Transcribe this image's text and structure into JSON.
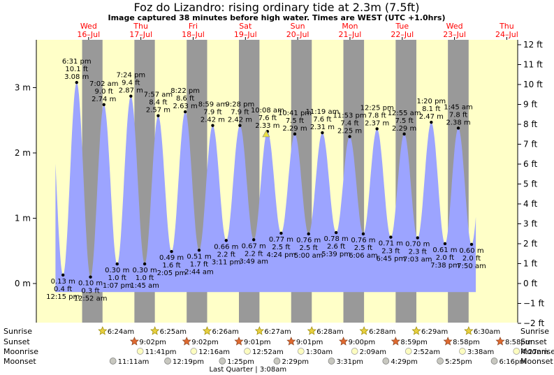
{
  "header": {
    "title": "Foz do Lizandro: rising  ordinary tide at 2.3m (7.5ft)",
    "subtitle": "Image captured 38 minutes before high water. Times are WEST (UTC +1.0hrs)"
  },
  "days": [
    {
      "name": "Wed",
      "date": "16–Jul",
      "t": 24
    },
    {
      "name": "Thu",
      "date": "17–Jul",
      "t": 48
    },
    {
      "name": "Fri",
      "date": "18–Jul",
      "t": 72
    },
    {
      "name": "Sat",
      "date": "19–Jul",
      "t": 96
    },
    {
      "name": "Sun",
      "date": "20–Jul",
      "t": 120
    },
    {
      "name": "Mon",
      "date": "21–Jul",
      "t": 144
    },
    {
      "name": "Tue",
      "date": "22–Jul",
      "t": 168
    },
    {
      "name": "Wed",
      "date": "23–Jul",
      "t": 192
    },
    {
      "name": "Thu",
      "date": "24–Jul",
      "t": 216
    }
  ],
  "axes": {
    "left_ticks": [
      {
        "v": 0,
        "label": "0 m"
      },
      {
        "v": 1,
        "label": "1 m"
      },
      {
        "v": 2,
        "label": "2 m"
      },
      {
        "v": 3,
        "label": "3 m"
      }
    ],
    "right_ticks": [
      "−2 ft",
      "−1 ft",
      "0 ft",
      "1 ft",
      "2 ft",
      "3 ft",
      "4 ft",
      "5 ft",
      "6 ft",
      "7 ft",
      "8 ft",
      "9 ft",
      "10 ft",
      "11 ft",
      "12 ft"
    ],
    "ylim_m": [
      -0.3,
      3.7
    ],
    "ft_to_m": 0.3048
  },
  "chart_data": {
    "type": "area",
    "time_unit": "hours since 00:00 16-Jul (WEST)",
    "tides": [
      {
        "t": 12.25,
        "m": 0.13,
        "ft": "0.4 ft",
        "time": "12:15 pm",
        "type": "low"
      },
      {
        "t": 18.52,
        "m": 3.08,
        "ft": "10.1 ft",
        "time": "6:31 pm",
        "type": "high"
      },
      {
        "t": 24.87,
        "m": 0.1,
        "ft": "0.3 ft",
        "time": "12:52 am",
        "type": "low"
      },
      {
        "t": 31.03,
        "m": 2.74,
        "ft": "9.0 ft",
        "time": "7:02 am",
        "type": "high"
      },
      {
        "t": 37.12,
        "m": 0.3,
        "ft": "1.0 ft",
        "time": "1:07 pm",
        "type": "low"
      },
      {
        "t": 43.4,
        "m": 2.87,
        "ft": "9.4 ft",
        "time": "7:24 pm",
        "type": "high"
      },
      {
        "t": 49.75,
        "m": 0.3,
        "ft": "1.0 ft",
        "time": "1:45 am",
        "type": "low"
      },
      {
        "t": 55.95,
        "m": 2.57,
        "ft": "8.4 ft",
        "time": "7:57 am",
        "type": "high"
      },
      {
        "t": 62.08,
        "m": 0.49,
        "ft": "1.6 ft",
        "time": "2:05 pm",
        "type": "low"
      },
      {
        "t": 68.37,
        "m": 2.63,
        "ft": "8.6 ft",
        "time": "8:22 pm",
        "type": "high"
      },
      {
        "t": 74.73,
        "m": 0.51,
        "ft": "1.7 ft",
        "time": "2:44 am",
        "type": "low"
      },
      {
        "t": 80.98,
        "m": 2.42,
        "ft": "7.9 ft",
        "time": "8:59 am",
        "type": "high"
      },
      {
        "t": 87.18,
        "m": 0.66,
        "ft": "2.2 ft",
        "time": "3:11 pm",
        "type": "low"
      },
      {
        "t": 93.47,
        "m": 2.42,
        "ft": "7.9 ft",
        "time": "9:28 pm",
        "type": "high"
      },
      {
        "t": 99.82,
        "m": 0.67,
        "ft": "2.2 ft",
        "time": "3:49 am",
        "type": "low"
      },
      {
        "t": 106.13,
        "m": 2.33,
        "ft": "7.6 ft",
        "time": "10:08 am",
        "type": "high"
      },
      {
        "t": 112.4,
        "m": 0.77,
        "ft": "2.5 ft",
        "time": "4:24 pm",
        "type": "low"
      },
      {
        "t": 118.68,
        "m": 2.29,
        "ft": "7.5 ft",
        "time": "10:41 pm",
        "type": "high"
      },
      {
        "t": 125.0,
        "m": 0.76,
        "ft": "2.5 ft",
        "time": "5:00 am",
        "type": "low"
      },
      {
        "t": 131.32,
        "m": 2.31,
        "ft": "7.6 ft",
        "time": "11:19 am",
        "type": "high"
      },
      {
        "t": 137.65,
        "m": 0.78,
        "ft": "2.6 ft",
        "time": "5:39 pm",
        "type": "low"
      },
      {
        "t": 143.88,
        "m": 2.25,
        "ft": "7.4 ft",
        "time": "11:53 pm",
        "type": "high"
      },
      {
        "t": 150.1,
        "m": 0.76,
        "ft": "2.5 ft",
        "time": "6:06 am",
        "type": "low"
      },
      {
        "t": 156.42,
        "m": 2.37,
        "ft": "7.8 ft",
        "time": "12:25 pm",
        "type": "high"
      },
      {
        "t": 162.75,
        "m": 0.71,
        "ft": "2.3 ft",
        "time": "6:45 pm",
        "type": "low"
      },
      {
        "t": 168.92,
        "m": 2.29,
        "ft": "7.5 ft",
        "time": "12:55 am",
        "type": "high"
      },
      {
        "t": 175.05,
        "m": 0.7,
        "ft": "2.3 ft",
        "time": "7:03 am",
        "type": "low"
      },
      {
        "t": 181.33,
        "m": 2.47,
        "ft": "8.1 ft",
        "time": "1:20 pm",
        "type": "high"
      },
      {
        "t": 187.63,
        "m": 0.61,
        "ft": "2.0 ft",
        "time": "7:38 pm",
        "type": "low"
      },
      {
        "t": 193.75,
        "m": 2.38,
        "ft": "7.8 ft",
        "time": "1:45 am",
        "type": "high"
      },
      {
        "t": 199.83,
        "m": 0.6,
        "ft": "2.0 ft",
        "time": "7:50 am",
        "type": "low"
      }
    ],
    "capture_t": 105.5,
    "capture_m": 2.3,
    "start_t": 8.8,
    "end_t": 201.8
  },
  "nights": [
    {
      "set": 21.03,
      "rise": 30.4
    },
    {
      "set": 45.03,
      "rise": 54.42
    },
    {
      "set": 69.02,
      "rise": 78.43
    },
    {
      "set": 93.02,
      "rise": 102.45
    },
    {
      "set": 117.0,
      "rise": 126.47
    },
    {
      "set": 140.98,
      "rise": 150.47
    },
    {
      "set": 164.97,
      "rise": 174.48
    },
    {
      "set": 188.97,
      "rise": 198.48
    }
  ],
  "astro": {
    "labels": {
      "sunrise": "Sunrise",
      "sunset": "Sunset",
      "moonrise": "Moonrise",
      "moonset": "Moonset"
    },
    "sunrise": [
      {
        "t": 30.4,
        "time": "6:24am"
      },
      {
        "t": 54.42,
        "time": "6:25am"
      },
      {
        "t": 78.43,
        "time": "6:26am"
      },
      {
        "t": 102.45,
        "time": "6:27am"
      },
      {
        "t": 126.47,
        "time": "6:28am"
      },
      {
        "t": 150.47,
        "time": "6:28am"
      },
      {
        "t": 174.48,
        "time": "6:29am"
      },
      {
        "t": 198.5,
        "time": "6:30am"
      }
    ],
    "sunset": [
      {
        "t": 45.03,
        "time": "9:02pm"
      },
      {
        "t": 69.03,
        "time": "9:02pm"
      },
      {
        "t": 93.02,
        "time": "9:01pm"
      },
      {
        "t": 117.02,
        "time": "9:01pm"
      },
      {
        "t": 141.0,
        "time": "9:00pm"
      },
      {
        "t": 164.98,
        "time": "8:59pm"
      },
      {
        "t": 188.97,
        "time": "8:58pm"
      },
      {
        "t": 212.97,
        "time": "8:58pm"
      }
    ],
    "moonrise": [
      {
        "t": 47.68,
        "time": "11:41pm"
      },
      {
        "t": 72.27,
        "time": "12:16am"
      },
      {
        "t": 96.87,
        "time": "12:52am"
      },
      {
        "t": 121.5,
        "time": "1:30am"
      },
      {
        "t": 146.15,
        "time": "2:09am"
      },
      {
        "t": 170.87,
        "time": "2:52am"
      },
      {
        "t": 195.63,
        "time": "3:38am"
      },
      {
        "t": 220.45,
        "time": "4:27am"
      }
    ],
    "moonset": [
      {
        "t": 35.18,
        "time": "11:11am"
      },
      {
        "t": 60.32,
        "time": "12:19pm"
      },
      {
        "t": 85.42,
        "time": "1:25pm"
      },
      {
        "t": 110.48,
        "time": "2:29pm"
      },
      {
        "t": 135.52,
        "time": "3:31pm"
      },
      {
        "t": 160.48,
        "time": "4:29pm"
      },
      {
        "t": 185.42,
        "time": "5:25pm"
      },
      {
        "t": 210.27,
        "time": "6:16pm"
      }
    ],
    "moon_phase": "Last Quarter | 3:08am"
  },
  "colors": {
    "day_bg": "#ffffc8",
    "night_bg": "#999999",
    "water": "#9ca4ff",
    "axis": "#000000",
    "day_label": "#ff0000",
    "sun": "#e8d040",
    "sunset_star": "#e06a30",
    "moonrise": "#fcfcc0",
    "moonset": "#c8c8c0"
  }
}
